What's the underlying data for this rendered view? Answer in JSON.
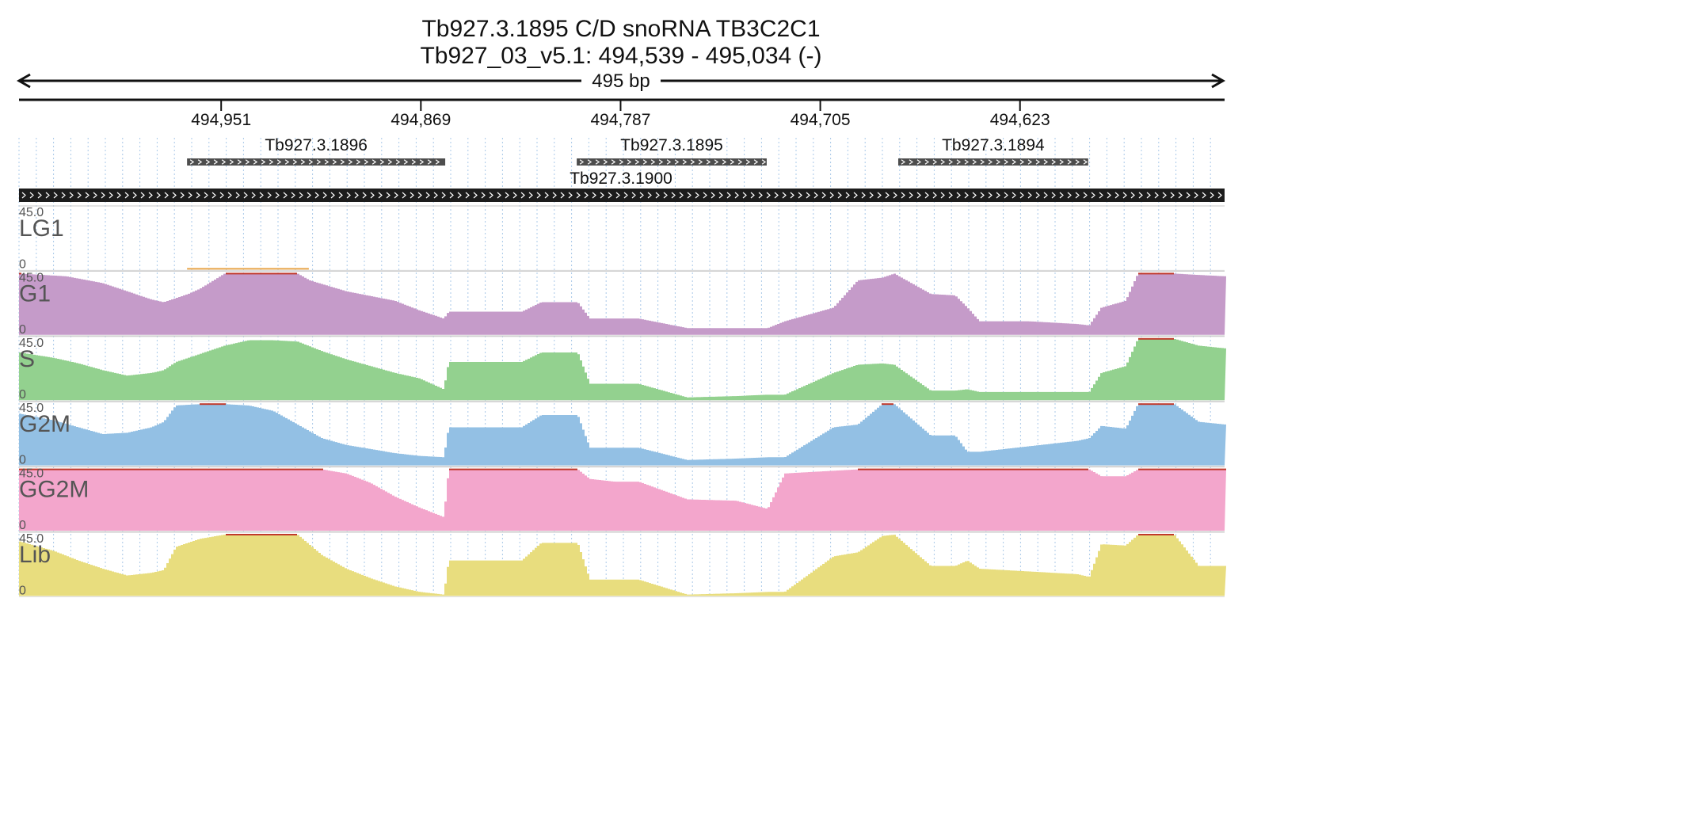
{
  "header": {
    "title_line1": "Tb927.3.1895  C/D snoRNA  TB3C2C1",
    "title_line2": "Tb927_03_v5.1: 494,539 - 495,034 (-)",
    "span_label": "495 bp"
  },
  "chart_data": {
    "type": "area",
    "title": "Tb927.3.1895  C/D snoRNA  TB3C2C1",
    "subtitle": "Tb927_03_v5.1: 494,539 - 495,034 (-)",
    "chromosome": "Tb927_03_v5.1",
    "strand": "-",
    "region": [
      494539,
      495034
    ],
    "length_label": "495 bp",
    "x_ticks": [
      494951,
      494869,
      494787,
      494705,
      494623
    ],
    "x_tick_labels": [
      "494,951",
      "494,869",
      "494,787",
      "494,705",
      "494,623"
    ],
    "ylim": [
      0,
      45.0
    ],
    "y_max_label": "45.0",
    "y_min_label": "0",
    "grid": true,
    "genes": [
      {
        "name": "Tb927.3.1896",
        "start": 494965,
        "end": 494859,
        "row": 0
      },
      {
        "name": "Tb927.3.1895",
        "start": 494805,
        "end": 494727,
        "row": 0
      },
      {
        "name": "Tb927.3.1894",
        "start": 494673,
        "end": 494595,
        "row": 0
      },
      {
        "name": "Tb927.3.1900",
        "start": 495034,
        "end": 494539,
        "row": 1,
        "full": true
      }
    ],
    "series": [
      {
        "name": "LG1",
        "color": "#e8a64a",
        "pos": [
          494965,
          494915
        ],
        "values": [
          0.6,
          0.6
        ]
      },
      {
        "name": "G1",
        "color": "#c59bc9",
        "pos": [
          495034,
          495015,
          495000,
          494990,
          494980,
          494975,
          494970,
          494965,
          494960,
          494950,
          494945,
          494935,
          494925,
          494920,
          494915,
          494900,
          494880,
          494870,
          494860,
          494858,
          494850,
          494840,
          494828,
          494820,
          494805,
          494800,
          494780,
          494760,
          494740,
          494727,
          494720,
          494700,
          494690,
          494680,
          494675,
          494660,
          494650,
          494645,
          494640,
          494630,
          494620,
          494610,
          494600,
          494595,
          494590,
          494580,
          494575,
          494560,
          494550,
          494539
        ],
        "values": [
          45,
          43,
          38,
          32,
          26,
          24,
          27,
          30,
          34,
          45,
          45,
          45,
          45,
          45,
          40,
          32,
          25,
          18,
          12,
          17,
          17,
          17,
          17,
          24,
          24,
          12,
          12,
          5,
          5,
          5,
          10,
          20,
          40,
          42,
          45,
          30,
          29,
          20,
          10,
          10,
          10,
          9,
          8,
          7,
          20,
          25,
          45,
          45,
          44,
          43
        ]
      },
      {
        "name": "S",
        "color": "#93d18f",
        "pos": [
          495034,
          495020,
          495010,
          495000,
          494990,
          494980,
          494975,
          494970,
          494960,
          494950,
          494940,
          494930,
          494920,
          494910,
          494900,
          494890,
          494880,
          494870,
          494860,
          494858,
          494840,
          494828,
          494820,
          494805,
          494800,
          494780,
          494760,
          494740,
          494727,
          494720,
          494700,
          494690,
          494680,
          494675,
          494660,
          494650,
          494645,
          494640,
          494620,
          494600,
          494595,
          494590,
          494580,
          494575,
          494560,
          494550,
          494539
        ],
        "values": [
          35,
          31,
          27,
          22,
          18,
          20,
          22,
          28,
          34,
          40,
          44,
          44,
          43,
          36,
          30,
          25,
          20,
          16,
          8,
          28,
          28,
          28,
          35,
          35,
          12,
          12,
          2,
          3,
          4,
          4,
          20,
          26,
          27,
          26,
          7,
          7,
          8,
          6,
          6,
          6,
          6,
          20,
          25,
          45,
          45,
          40,
          38
        ]
      },
      {
        "name": "G2M",
        "color": "#93c0e4",
        "pos": [
          495034,
          495020,
          495010,
          495000,
          494990,
          494980,
          494975,
          494970,
          494960,
          494950,
          494940,
          494930,
          494920,
          494910,
          494900,
          494890,
          494880,
          494870,
          494860,
          494858,
          494840,
          494828,
          494820,
          494805,
          494800,
          494780,
          494760,
          494740,
          494727,
          494720,
          494700,
          494690,
          494680,
          494675,
          494660,
          494650,
          494645,
          494640,
          494620,
          494600,
          494595,
          494590,
          494580,
          494575,
          494560,
          494550,
          494539
        ],
        "values": [
          38,
          33,
          28,
          23,
          24,
          28,
          32,
          44,
          45,
          45,
          44,
          40,
          30,
          20,
          15,
          12,
          9,
          7,
          6,
          28,
          28,
          28,
          37,
          37,
          13,
          13,
          4,
          5,
          6,
          6,
          28,
          30,
          45,
          45,
          22,
          22,
          10,
          10,
          14,
          18,
          20,
          29,
          27,
          45,
          45,
          32,
          30
        ]
      },
      {
        "name": "GG2M",
        "color": "#f3a6cc",
        "pos": [
          495034,
          494990,
          494970,
          494950,
          494930,
          494910,
          494900,
          494890,
          494880,
          494870,
          494860,
          494858,
          494840,
          494820,
          494805,
          494800,
          494790,
          494780,
          494760,
          494740,
          494727,
          494720,
          494700,
          494690,
          494680,
          494660,
          494650,
          494640,
          494620,
          494600,
          494595,
          494590,
          494580,
          494575,
          494560,
          494550,
          494539
        ],
        "values": [
          45,
          45,
          45,
          45,
          45,
          45,
          42,
          35,
          25,
          17,
          10,
          45,
          45,
          45,
          45,
          38,
          36,
          36,
          23,
          22,
          16,
          42,
          44,
          45,
          45,
          45,
          45,
          45,
          45,
          45,
          45,
          40,
          40,
          45,
          45,
          45,
          45
        ]
      },
      {
        "name": "Lib",
        "color": "#e8dd7e",
        "pos": [
          495034,
          495020,
          495010,
          495000,
          494990,
          494980,
          494975,
          494970,
          494960,
          494950,
          494940,
          494930,
          494920,
          494910,
          494900,
          494890,
          494880,
          494870,
          494860,
          494858,
          494840,
          494828,
          494820,
          494805,
          494800,
          494780,
          494760,
          494740,
          494727,
          494720,
          494700,
          494690,
          494680,
          494675,
          494660,
          494650,
          494645,
          494640,
          494620,
          494600,
          494595,
          494590,
          494580,
          494575,
          494560,
          494550,
          494539
        ],
        "values": [
          40,
          33,
          26,
          20,
          15,
          17,
          19,
          36,
          42,
          45,
          45,
          45,
          45,
          30,
          20,
          13,
          7,
          3,
          1,
          26,
          26,
          26,
          39,
          39,
          12,
          12,
          1,
          2,
          3,
          3,
          29,
          32,
          44,
          45,
          22,
          22,
          26,
          20,
          18,
          16,
          14,
          38,
          37,
          45,
          45,
          22,
          22
        ]
      }
    ]
  }
}
